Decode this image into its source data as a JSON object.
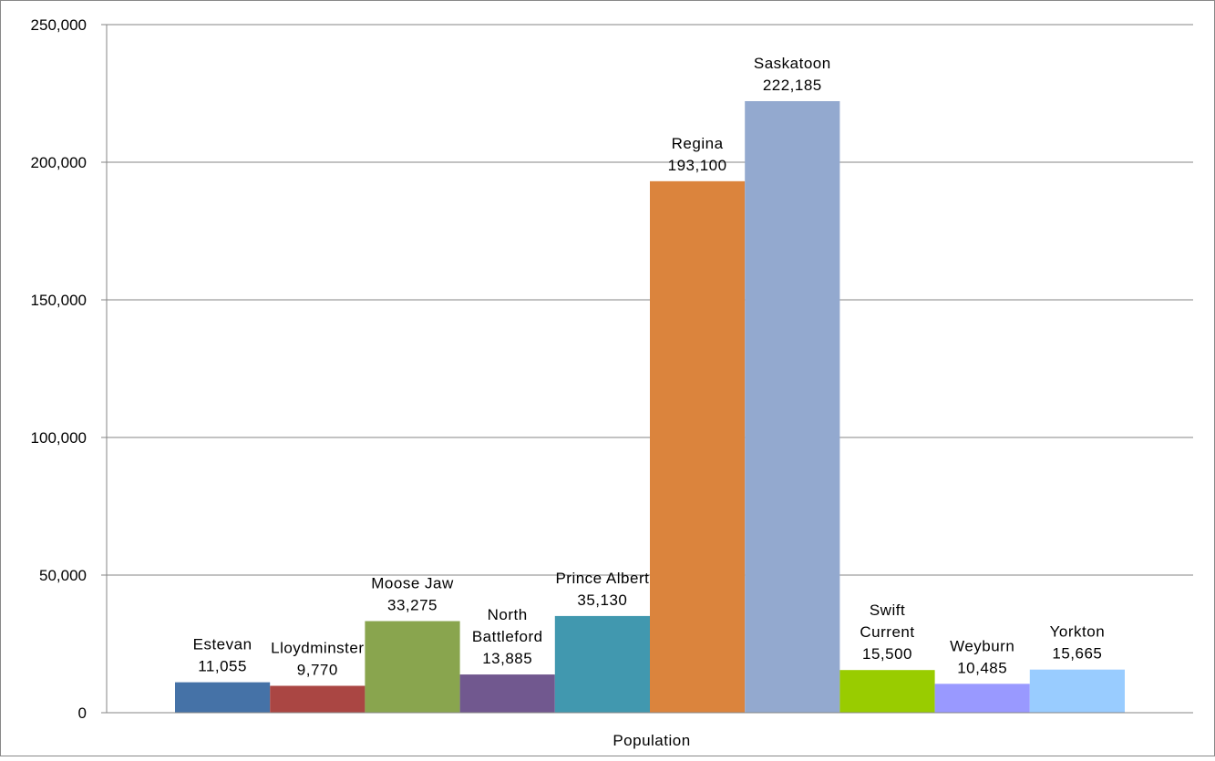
{
  "chart_data": {
    "type": "bar",
    "xlabel": "Population",
    "ylim": [
      0,
      250000
    ],
    "yticks": [
      0,
      50000,
      100000,
      150000,
      200000,
      250000
    ],
    "ytick_labels": [
      "0",
      "50,000",
      "100,000",
      "150,000",
      "200,000",
      "250,000"
    ],
    "grid": true,
    "legend": "none",
    "series": [
      {
        "label_lines": [
          "Estevan"
        ],
        "value": 11055,
        "value_label": "11,055",
        "color": "#4572A7"
      },
      {
        "label_lines": [
          "Lloydminster"
        ],
        "value": 9770,
        "value_label": "9,770",
        "color": "#AA4643"
      },
      {
        "label_lines": [
          "Moose Jaw"
        ],
        "value": 33275,
        "value_label": "33,275",
        "color": "#89A54E"
      },
      {
        "label_lines": [
          "North",
          "Battleford"
        ],
        "value": 13885,
        "value_label": "13,885",
        "color": "#71588F"
      },
      {
        "label_lines": [
          "Prince Albert"
        ],
        "value": 35130,
        "value_label": "35,130",
        "color": "#4198AF"
      },
      {
        "label_lines": [
          "Regina"
        ],
        "value": 193100,
        "value_label": "193,100",
        "color": "#DB843D"
      },
      {
        "label_lines": [
          "Saskatoon"
        ],
        "value": 222185,
        "value_label": "222,185",
        "color": "#93A9CF"
      },
      {
        "label_lines": [
          "Swift",
          "Current"
        ],
        "value": 15500,
        "value_label": "15,500",
        "color": "#99CC00"
      },
      {
        "label_lines": [
          "Weyburn"
        ],
        "value": 10485,
        "value_label": "10,485",
        "color": "#9999FF"
      },
      {
        "label_lines": [
          "Yorkton"
        ],
        "value": 15665,
        "value_label": "15,665",
        "color": "#99CCFF"
      }
    ]
  }
}
